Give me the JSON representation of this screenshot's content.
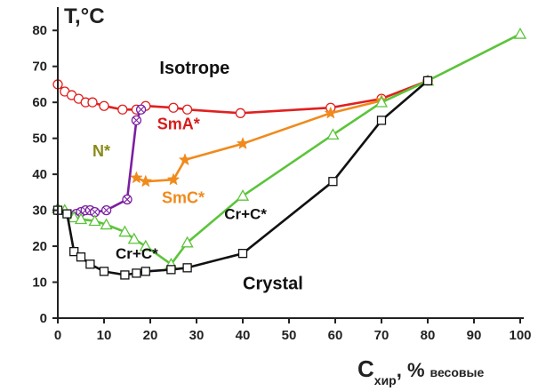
{
  "chart_data": {
    "type": "line",
    "title": "",
    "ylabel": "T,°C",
    "xlabel_main": "C",
    "xlabel_sub": "хир",
    "xlabel_rest": ", %",
    "xlabel_unit": "весовые",
    "xlim": [
      0,
      100
    ],
    "ylim": [
      0,
      85
    ],
    "xticks": [
      0,
      10,
      20,
      30,
      40,
      50,
      60,
      70,
      80,
      90,
      100
    ],
    "yticks": [
      0,
      10,
      20,
      30,
      40,
      50,
      60,
      70,
      80
    ],
    "grid": false,
    "series": [
      {
        "key": "isotropic_transition",
        "color": "#e02020",
        "marker": "circle",
        "x": [
          0,
          1.5,
          3,
          4.5,
          6,
          7.5,
          10,
          14,
          17,
          19,
          25,
          28,
          39.5,
          59,
          70,
          80
        ],
        "y": [
          65,
          63,
          62,
          61,
          60,
          60,
          59,
          58,
          58,
          59,
          58.5,
          58,
          57,
          58.5,
          61,
          66
        ]
      },
      {
        "key": "smc_transition",
        "color": "#f08a1c",
        "marker": "star",
        "x": [
          17,
          19,
          25,
          27.5,
          40,
          59,
          70
        ],
        "y": [
          39,
          38,
          38.5,
          44,
          48.5,
          57,
          60.5
        ]
      },
      {
        "key": "n_phase_boundary",
        "color": "#7b1fa2",
        "marker": "crossed-circle",
        "x": [
          0,
          4,
          5,
          6,
          7,
          8,
          10.5,
          15,
          17,
          18
        ],
        "y": [
          30,
          29,
          29.5,
          30,
          30,
          29.5,
          30,
          33,
          55,
          58
        ]
      },
      {
        "key": "green_boundary",
        "color": "#5cc43a",
        "marker": "triangle",
        "x": [
          0,
          1.5,
          3.5,
          5,
          8,
          10.5,
          14.5,
          16.5,
          19,
          24.5,
          28,
          40,
          59.5,
          70,
          80,
          100
        ],
        "y": [
          30.5,
          30,
          28,
          27.5,
          27,
          26,
          24,
          22,
          20,
          15,
          21,
          34,
          51,
          60,
          66,
          79
        ]
      },
      {
        "key": "crystal_boundary",
        "color": "#111111",
        "marker": "square",
        "x": [
          0,
          2,
          3.5,
          5,
          7,
          10,
          14.5,
          17,
          19,
          24.5,
          28,
          40,
          59.5,
          70,
          80
        ],
        "y": [
          30,
          29,
          18.5,
          17,
          15,
          13,
          12,
          12.5,
          13,
          13.5,
          14,
          18,
          38,
          55,
          66
        ]
      }
    ],
    "region_labels": [
      {
        "key": "isotrope",
        "text": "Isotrope",
        "x": 22,
        "y": 68,
        "color": "#111111",
        "size": 20
      },
      {
        "key": "sma",
        "text": "SmA*",
        "x": 21.5,
        "y": 52.5,
        "color": "#d81b1b",
        "size": 18
      },
      {
        "key": "n-star",
        "text": "N*",
        "x": 7.5,
        "y": 45,
        "color": "#8a8a1a",
        "size": 18
      },
      {
        "key": "smc",
        "text": "SmC*",
        "x": 22.5,
        "y": 32,
        "color": "#f08a1c",
        "size": 18
      },
      {
        "key": "cr-c-right",
        "text": "Cr+C*",
        "x": 36,
        "y": 27.5,
        "color": "#111111",
        "size": 17
      },
      {
        "key": "cr-c-left",
        "text": "Cr+C*",
        "x": 12.5,
        "y": 16.5,
        "color": "#111111",
        "size": 17
      },
      {
        "key": "crystal",
        "text": "Crystal",
        "x": 40,
        "y": 8,
        "color": "#111111",
        "size": 20
      }
    ]
  }
}
